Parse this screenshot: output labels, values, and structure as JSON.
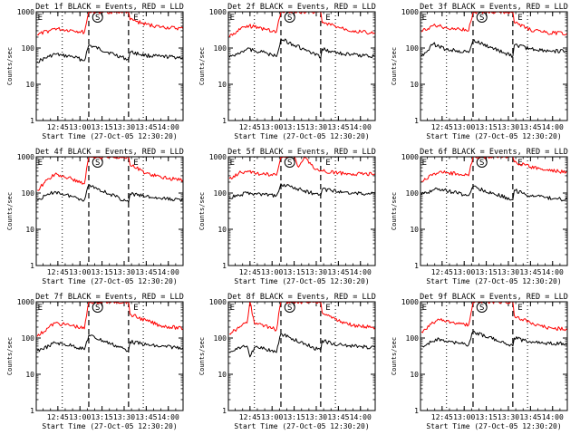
{
  "chart_data": {
    "type": "line",
    "y_scale": "log",
    "ylim": [
      1,
      1000
    ],
    "y_ticks": [
      1,
      10,
      100,
      1000
    ],
    "y_tick_labels": [
      "1",
      "10",
      "100",
      "1000"
    ],
    "ylabel": "Counts/sec",
    "x_ticks": [
      "12:45",
      "13:00",
      "13:15",
      "13:30",
      "13:45",
      "14:00"
    ],
    "xlabel": "Start Time (27-Oct-05 12:30:20)",
    "xlim": [
      "12:30:20",
      "14:10"
    ],
    "event_markers": [
      {
        "label": "E",
        "time": "12:33"
      },
      {
        "label": "S",
        "time": "13:12"
      },
      {
        "label": "E",
        "time": "13:38"
      }
    ],
    "dotted_lines": [
      "12:48",
      "13:43"
    ],
    "dashed_lines": [
      "13:06",
      "13:33"
    ],
    "grid": false,
    "colors": {
      "events": "#000000",
      "lld": "#ff0000"
    },
    "panels": [
      {
        "title": "Det 1f BLACK = Events, RED = LLD",
        "series": [
          {
            "name": "Events",
            "x": [
              "12:31",
              "12:39",
              "12:43",
              "12:48",
              "12:55",
              "13:03",
              "13:06",
              "13:33",
              "13:34",
              "13:45",
              "13:55",
              "14:10"
            ],
            "y": [
              42,
              58,
              68,
              62,
              58,
              45,
              120,
              48,
              78,
              62,
              58,
              55
            ]
          },
          {
            "name": "LLD",
            "x": [
              "12:31",
              "12:39",
              "12:43",
              "12:48",
              "12:55",
              "13:03",
              "13:06",
              "13:33",
              "13:34",
              "13:45",
              "13:55",
              "14:10"
            ],
            "y": [
              230,
              300,
              350,
              320,
              310,
              270,
              1000,
              1000,
              600,
              450,
              380,
              340
            ]
          }
        ]
      },
      {
        "title": "Det 2f BLACK = Events, RED = LLD",
        "series": [
          {
            "name": "Events",
            "x": [
              "12:31",
              "12:39",
              "12:43",
              "12:48",
              "12:55",
              "13:03",
              "13:06",
              "13:33",
              "13:34",
              "13:45",
              "13:55",
              "14:10"
            ],
            "y": [
              55,
              80,
              95,
              85,
              75,
              58,
              180,
              55,
              95,
              72,
              65,
              60
            ]
          },
          {
            "name": "LLD",
            "x": [
              "12:31",
              "12:39",
              "12:43",
              "12:48",
              "12:55",
              "13:03",
              "13:06",
              "13:33",
              "13:34",
              "13:45",
              "13:55",
              "14:10"
            ],
            "y": [
              200,
              360,
              420,
              380,
              330,
              280,
              1000,
              1000,
              500,
              380,
              300,
              250
            ]
          }
        ]
      },
      {
        "title": "Det 3f BLACK = Events, RED = LLD",
        "series": [
          {
            "name": "Events",
            "x": [
              "12:31",
              "12:39",
              "12:43",
              "12:48",
              "12:55",
              "13:03",
              "13:06",
              "13:33",
              "13:34",
              "13:45",
              "13:55",
              "14:10"
            ],
            "y": [
              60,
              130,
              110,
              90,
              85,
              75,
              160,
              60,
              120,
              95,
              85,
              80
            ]
          },
          {
            "name": "LLD",
            "x": [
              "12:31",
              "12:39",
              "12:43",
              "12:48",
              "12:55",
              "13:03",
              "13:06",
              "13:33",
              "13:34",
              "13:45",
              "13:55",
              "14:10"
            ],
            "y": [
              280,
              420,
              400,
              360,
              340,
              300,
              1000,
              1000,
              500,
              320,
              270,
              250
            ]
          }
        ]
      },
      {
        "title": "Det 4f BLACK = Events, RED = LLD",
        "series": [
          {
            "name": "Events",
            "x": [
              "12:31",
              "12:39",
              "12:43",
              "12:48",
              "12:55",
              "13:03",
              "13:06",
              "13:33",
              "13:34",
              "13:45",
              "13:55",
              "14:10"
            ],
            "y": [
              65,
              90,
              110,
              95,
              80,
              65,
              170,
              55,
              95,
              80,
              70,
              65
            ]
          },
          {
            "name": "LLD",
            "x": [
              "12:31",
              "12:39",
              "12:43",
              "12:48",
              "12:55",
              "13:03",
              "13:06",
              "13:33",
              "13:34",
              "13:45",
              "13:55",
              "14:10"
            ],
            "y": [
              120,
              250,
              330,
              290,
              240,
              180,
              1000,
              1000,
              600,
              350,
              270,
              230
            ]
          }
        ]
      },
      {
        "title": "Det 5f BLACK = Events, RED = LLD",
        "series": [
          {
            "name": "Events",
            "x": [
              "12:31",
              "12:39",
              "12:43",
              "12:48",
              "12:55",
              "13:03",
              "13:06",
              "13:33",
              "13:34",
              "13:45",
              "13:55",
              "14:10"
            ],
            "y": [
              75,
              90,
              100,
              95,
              90,
              85,
              180,
              85,
              125,
              110,
              100,
              95
            ]
          },
          {
            "name": "LLD",
            "x": [
              "12:31",
              "12:39",
              "12:43",
              "12:48",
              "12:55",
              "13:03",
              "13:06",
              "13:15",
              "13:18",
              "13:22",
              "13:28",
              "13:33",
              "13:45",
              "13:55",
              "14:10"
            ],
            "y": [
              250,
              370,
              380,
              360,
              330,
              310,
              1000,
              1000,
              520,
              1000,
              500,
              420,
              360,
              340,
              330
            ]
          }
        ]
      },
      {
        "title": "Det 6f BLACK = Events, RED = LLD",
        "series": [
          {
            "name": "Events",
            "x": [
              "12:31",
              "12:39",
              "12:43",
              "12:48",
              "12:55",
              "13:03",
              "13:06",
              "13:33",
              "13:34",
              "13:45",
              "13:55",
              "14:10"
            ],
            "y": [
              90,
              120,
              130,
              115,
              100,
              85,
              150,
              65,
              120,
              85,
              75,
              65
            ]
          },
          {
            "name": "LLD",
            "x": [
              "12:31",
              "12:39",
              "12:43",
              "12:48",
              "12:55",
              "13:03",
              "13:06",
              "13:33",
              "13:34",
              "13:45",
              "13:55",
              "14:10"
            ],
            "y": [
              210,
              340,
              380,
              360,
              340,
              300,
              1000,
              1000,
              720,
              520,
              430,
              380
            ]
          }
        ]
      },
      {
        "title": "Det 7f BLACK = Events, RED = LLD",
        "series": [
          {
            "name": "Events",
            "x": [
              "12:31",
              "12:39",
              "12:43",
              "12:48",
              "12:55",
              "13:03",
              "13:06",
              "13:33",
              "13:34",
              "13:45",
              "13:55",
              "14:10"
            ],
            "y": [
              45,
              60,
              75,
              68,
              62,
              48,
              120,
              45,
              80,
              65,
              58,
              55
            ]
          },
          {
            "name": "LLD",
            "x": [
              "12:31",
              "12:39",
              "12:43",
              "12:48",
              "12:55",
              "13:03",
              "13:06",
              "13:33",
              "13:34",
              "13:45",
              "13:55",
              "14:10"
            ],
            "y": [
              110,
              200,
              260,
              240,
              220,
              180,
              1000,
              1000,
              450,
              300,
              220,
              180
            ]
          }
        ]
      },
      {
        "title": "Det 8f BLACK = Events, RED = LLD",
        "series": [
          {
            "name": "Events",
            "x": [
              "12:31",
              "12:39",
              "12:43",
              "12:45",
              "12:48",
              "12:55",
              "13:03",
              "13:06",
              "13:33",
              "13:34",
              "13:45",
              "13:55",
              "14:10"
            ],
            "y": [
              40,
              55,
              60,
              30,
              55,
              50,
              40,
              130,
              45,
              85,
              65,
              60,
              55
            ]
          },
          {
            "name": "LLD",
            "x": [
              "12:31",
              "12:39",
              "12:43",
              "12:45",
              "12:48",
              "12:55",
              "13:03",
              "13:06",
              "13:33",
              "13:34",
              "13:45",
              "13:55",
              "14:10"
            ],
            "y": [
              130,
              210,
              260,
              1000,
              260,
              220,
              170,
              1000,
              1000,
              500,
              300,
              220,
              190
            ]
          }
        ]
      },
      {
        "title": "Det 9f BLACK = Events, RED = LLD",
        "series": [
          {
            "name": "Events",
            "x": [
              "12:31",
              "12:39",
              "12:43",
              "12:48",
              "12:55",
              "13:03",
              "13:06",
              "13:33",
              "13:34",
              "13:45",
              "13:55",
              "14:10"
            ],
            "y": [
              60,
              80,
              95,
              80,
              75,
              65,
              150,
              60,
              100,
              78,
              72,
              70
            ]
          },
          {
            "name": "LLD",
            "x": [
              "12:31",
              "12:39",
              "12:43",
              "12:48",
              "12:55",
              "13:03",
              "13:06",
              "13:33",
              "13:34",
              "13:45",
              "13:55",
              "14:10"
            ],
            "y": [
              150,
              260,
              320,
              290,
              260,
              230,
              1000,
              1000,
              420,
              260,
              200,
              170
            ]
          }
        ]
      }
    ]
  }
}
